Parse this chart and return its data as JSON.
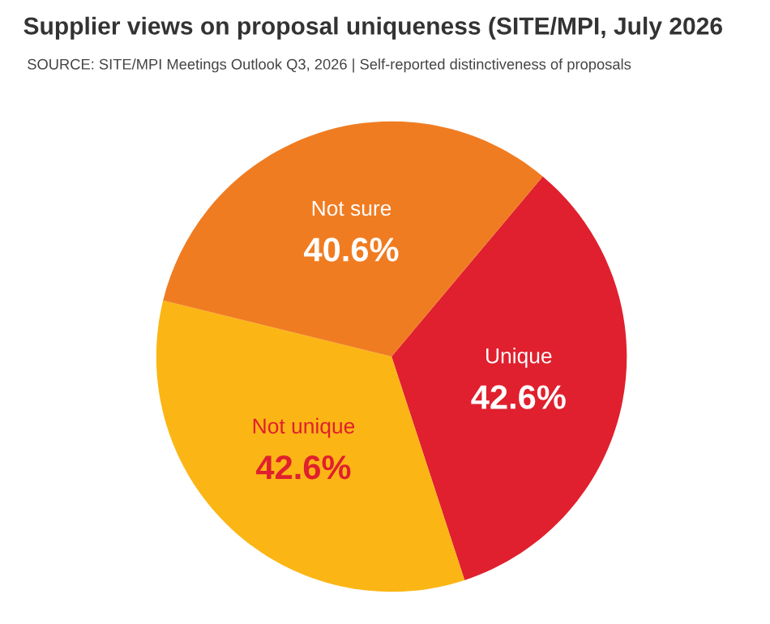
{
  "chart_data": {
    "type": "pie",
    "title": "Supplier views on proposal uniqueness (SITE/MPI, July 2026",
    "subtitle": "SOURCE: SITE/MPI Meetings Outlook Q3, 2026 | Self-reported distinctiveness of proposals",
    "categories": [
      "Unique",
      "Not unique",
      "Not sure"
    ],
    "values": [
      42.6,
      42.6,
      40.6
    ],
    "colors": [
      "#e0202e",
      "#fbb615",
      "#f07c22"
    ],
    "value_labels": [
      "42.6%",
      "42.6%",
      "40.6%"
    ],
    "legend": false
  }
}
